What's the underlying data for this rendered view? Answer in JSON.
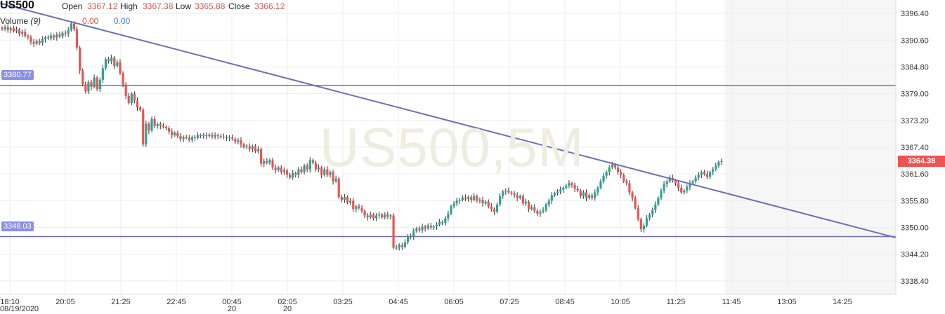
{
  "header": {
    "symbol": "US500",
    "open_label": "Open",
    "open_value": "3367.12",
    "high_label": "High",
    "high_value": "3367.38",
    "low_label": "Low",
    "low_value": "3365.88",
    "close_label": "Close",
    "close_value": "3366.12",
    "volume_label": "Volume",
    "volume_period": "(9)",
    "volume_value_1": "0.00",
    "volume_value_2": "0.00"
  },
  "watermark": "US500,5M",
  "current_price": "3364.38",
  "horizontal_lines": [
    {
      "label": "3380.77",
      "value": 3380.77
    },
    {
      "label": "3348.03",
      "value": 3348.03
    }
  ],
  "colors": {
    "up": "#26a69a",
    "down": "#ef5350",
    "trendline": "#6f6fb8",
    "grid": "#eeeeee"
  },
  "chart_data": {
    "type": "candlestick",
    "y_ticks": [
      "3396.40",
      "3390.60",
      "3384.80",
      "3379.00",
      "3373.20",
      "3367.40",
      "3361.60",
      "3355.80",
      "3350.00",
      "3344.20",
      "3338.40"
    ],
    "ylim": [
      3335.5,
      3399.3
    ],
    "x_ticks": [
      {
        "label": "18:10",
        "sub": "08/19/2020"
      },
      {
        "label": "20:05",
        "sub": ""
      },
      {
        "label": "21:25",
        "sub": ""
      },
      {
        "label": "22:45",
        "sub": ""
      },
      {
        "label": "00:45",
        "sub": "20"
      },
      {
        "label": "02:05",
        "sub": "20"
      },
      {
        "label": "03:25",
        "sub": ""
      },
      {
        "label": "04:45",
        "sub": ""
      },
      {
        "label": "06:05",
        "sub": ""
      },
      {
        "label": "07:25",
        "sub": ""
      },
      {
        "label": "08:45",
        "sub": ""
      },
      {
        "label": "10:05",
        "sub": ""
      },
      {
        "label": "11:25",
        "sub": ""
      },
      {
        "label": "11:45",
        "sub": ""
      },
      {
        "label": "13:05",
        "sub": ""
      },
      {
        "label": "14:25",
        "sub": ""
      }
    ],
    "trendline": {
      "start": 3398.6,
      "end": 3347.8
    },
    "candles_closes": [
      3393.0,
      3393.4,
      3392.8,
      3393.2,
      3392.6,
      3392.9,
      3392.0,
      3392.4,
      3391.5,
      3391.2,
      3390.2,
      3389.8,
      3390.4,
      3390.0,
      3390.8,
      3391.2,
      3391.0,
      3391.6,
      3391.2,
      3391.8,
      3391.4,
      3392.2,
      3392.0,
      3392.8,
      3394.2,
      3393.0,
      3389.0,
      3384.0,
      3381.0,
      3379.5,
      3381.5,
      3380.5,
      3382.5,
      3380.0,
      3382.0,
      3384.5,
      3386.5,
      3386.0,
      3386.8,
      3385.0,
      3385.8,
      3383.5,
      3381.0,
      3378.5,
      3377.0,
      3379.0,
      3377.5,
      3376.0,
      3375.5,
      3368.0,
      3372.5,
      3371.0,
      3373.5,
      3372.0,
      3372.4,
      3372.0,
      3371.8,
      3371.5,
      3370.8,
      3370.0,
      3370.5,
      3369.8,
      3369.2,
      3369.6,
      3369.4,
      3369.0,
      3369.6,
      3369.4,
      3370.0,
      3369.8,
      3370.0,
      3369.8,
      3370.1,
      3369.7,
      3370.0,
      3369.8,
      3369.6,
      3369.7,
      3369.4,
      3369.5,
      3369.2,
      3368.6,
      3368.9,
      3368.0,
      3367.4,
      3367.6,
      3367.0,
      3367.6,
      3366.5,
      3367.0,
      3363.8,
      3364.4,
      3364.0,
      3364.6,
      3363.0,
      3362.4,
      3363.0,
      3362.0,
      3362.4,
      3361.4,
      3360.8,
      3361.8,
      3361.4,
      3362.6,
      3362.0,
      3363.4,
      3362.6,
      3364.6,
      3364.0,
      3362.6,
      3363.0,
      3361.4,
      3362.6,
      3361.4,
      3362.0,
      3360.0,
      3360.6,
      3356.6,
      3356.0,
      3356.6,
      3355.4,
      3355.8,
      3354.0,
      3354.6,
      3354.2,
      3353.6,
      3352.6,
      3352.2,
      3352.8,
      3352.0,
      3352.6,
      3352.8,
      3352.2,
      3352.8,
      3352.4,
      3352.6,
      3345.6,
      3345.6,
      3346.2,
      3345.8,
      3346.8,
      3348.2,
      3348.0,
      3349.2,
      3349.8,
      3349.4,
      3350.2,
      3349.8,
      3350.4,
      3350.0,
      3350.2,
      3350.6,
      3351.2,
      3351.0,
      3352.0,
      3353.0,
      3354.6,
      3355.2,
      3355.8,
      3356.0,
      3356.5,
      3356.2,
      3356.6,
      3356.0,
      3356.8,
      3355.8,
      3356.0,
      3355.2,
      3355.6,
      3354.6,
      3354.0,
      3353.4,
      3355.0,
      3356.8,
      3357.8,
      3358.0,
      3357.6,
      3357.4,
      3357.0,
      3356.4,
      3356.8,
      3355.2,
      3355.6,
      3354.0,
      3354.4,
      3353.6,
      3353.0,
      3353.4,
      3353.8,
      3355.0,
      3355.8,
      3357.0,
      3357.4,
      3357.8,
      3358.2,
      3358.6,
      3359.0,
      3359.6,
      3359.2,
      3358.4,
      3358.0,
      3356.8,
      3357.6,
      3356.4,
      3357.0,
      3356.4,
      3357.6,
      3358.6,
      3360.0,
      3361.2,
      3362.0,
      3363.0,
      3363.6,
      3363.0,
      3362.0,
      3361.4,
      3360.0,
      3359.6,
      3357.6,
      3356.4,
      3354.2,
      3351.8,
      3349.6,
      3350.4,
      3352.0,
      3352.8,
      3353.8,
      3355.0,
      3356.4,
      3358.0,
      3359.4,
      3360.0,
      3360.8,
      3360.2,
      3359.6,
      3358.6,
      3357.6,
      3358.0,
      3358.8,
      3359.6,
      3360.0,
      3360.8,
      3361.4,
      3362.0,
      3361.6,
      3361.0,
      3362.0,
      3362.6,
      3363.4,
      3364.2,
      3364.4
    ]
  }
}
